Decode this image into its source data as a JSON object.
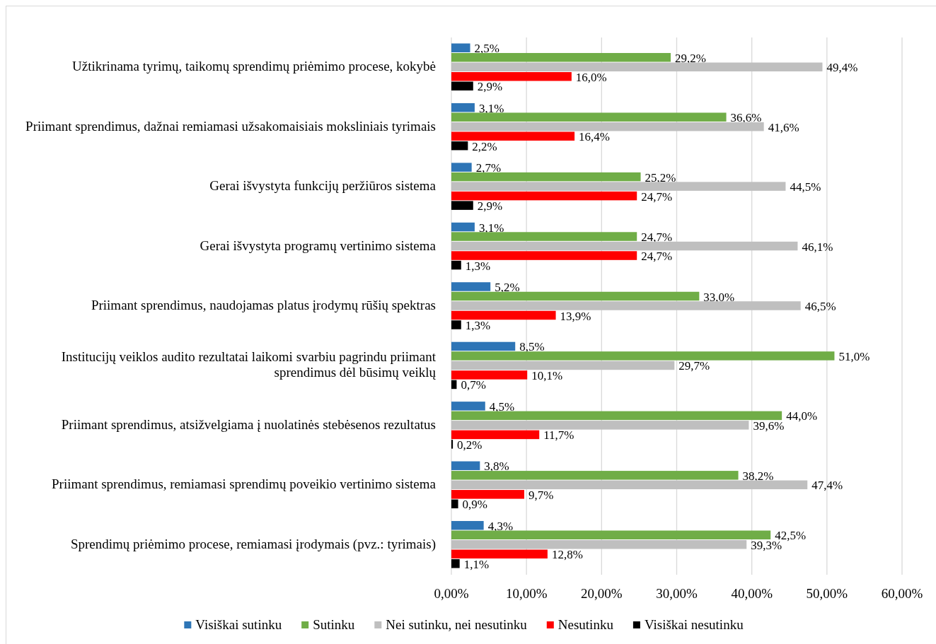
{
  "chart_data": {
    "type": "bar",
    "orientation": "horizontal",
    "categories": [
      "Užtikrinama tyrimų, taikomų sprendimų priėmimo procese, kokybė",
      "Priimant sprendimus, dažnai remiamasi užsakomaisiais moksliniais tyrimais",
      "Gerai išvystyta funkcijų peržiūros sistema",
      "Gerai išvystyta programų vertinimo sistema",
      "Priimant sprendimus, naudojamas platus įrodymų rūšių spektras",
      "Institucijų veiklos audito rezultatai laikomi svarbiu pagrindu priimant sprendimus dėl būsimų veiklų",
      "Priimant sprendimus, atsižvelgiama į nuolatinės stebėsenos rezultatus",
      "Priimant sprendimus, remiamasi sprendimų poveikio vertinimo sistema",
      "Sprendimų priėmimo procese, remiamasi įrodymais (pvz.: tyrimais)"
    ],
    "series": [
      {
        "name": "Visiškai sutinku",
        "color": "#2e75b6",
        "values": [
          2.5,
          3.1,
          2.7,
          3.1,
          5.2,
          8.5,
          4.5,
          3.8,
          4.3
        ],
        "value_labels": [
          "2,5%",
          "3,1%",
          "2,7%",
          "3,1%",
          "5,2%",
          "8,5%",
          "4,5%",
          "3,8%",
          "4,3%"
        ]
      },
      {
        "name": "Sutinku",
        "color": "#70ad47",
        "values": [
          29.2,
          36.6,
          25.2,
          24.7,
          33.0,
          51.0,
          44.0,
          38.2,
          42.5
        ],
        "value_labels": [
          "29,2%",
          "36,6%",
          "25,2%",
          "24,7%",
          "33,0%",
          "51,0%",
          "44,0%",
          "38,2%",
          "42,5%"
        ]
      },
      {
        "name": "Nei sutinku, nei nesutinku",
        "color": "#bfbfbf",
        "values": [
          49.4,
          41.6,
          44.5,
          46.1,
          46.5,
          29.7,
          39.6,
          47.4,
          39.3
        ],
        "value_labels": [
          "49,4%",
          "41,6%",
          "44,5%",
          "46,1%",
          "46,5%",
          "29,7%",
          "39,6%",
          "47,4%",
          "39,3%"
        ]
      },
      {
        "name": "Nesutinku",
        "color": "#ff0000",
        "values": [
          16.0,
          16.4,
          24.7,
          24.7,
          13.9,
          10.1,
          11.7,
          9.7,
          12.8
        ],
        "value_labels": [
          "16,0%",
          "16,4%",
          "24,7%",
          "24,7%",
          "13,9%",
          "10,1%",
          "11,7%",
          "9,7%",
          "12,8%"
        ]
      },
      {
        "name": "Visiškai nesutinku",
        "color": "#000000",
        "values": [
          2.9,
          2.2,
          2.9,
          1.3,
          1.3,
          0.7,
          0.2,
          0.9,
          1.1
        ],
        "value_labels": [
          "2,9%",
          "2,2%",
          "2,9%",
          "1,3%",
          "1,3%",
          "0,7%",
          "0,2%",
          "0,9%",
          "1,1%"
        ]
      }
    ],
    "xlim": [
      0,
      60
    ],
    "xticks": [
      {
        "value": 0,
        "label": "0,00%"
      },
      {
        "value": 10,
        "label": "10,00%"
      },
      {
        "value": 20,
        "label": "20,00%"
      },
      {
        "value": 30,
        "label": "30,00%"
      },
      {
        "value": 40,
        "label": "40,00%"
      },
      {
        "value": 50,
        "label": "50,00%"
      },
      {
        "value": 60,
        "label": "60,00%"
      }
    ],
    "grid": "x",
    "legend": "bottom"
  }
}
